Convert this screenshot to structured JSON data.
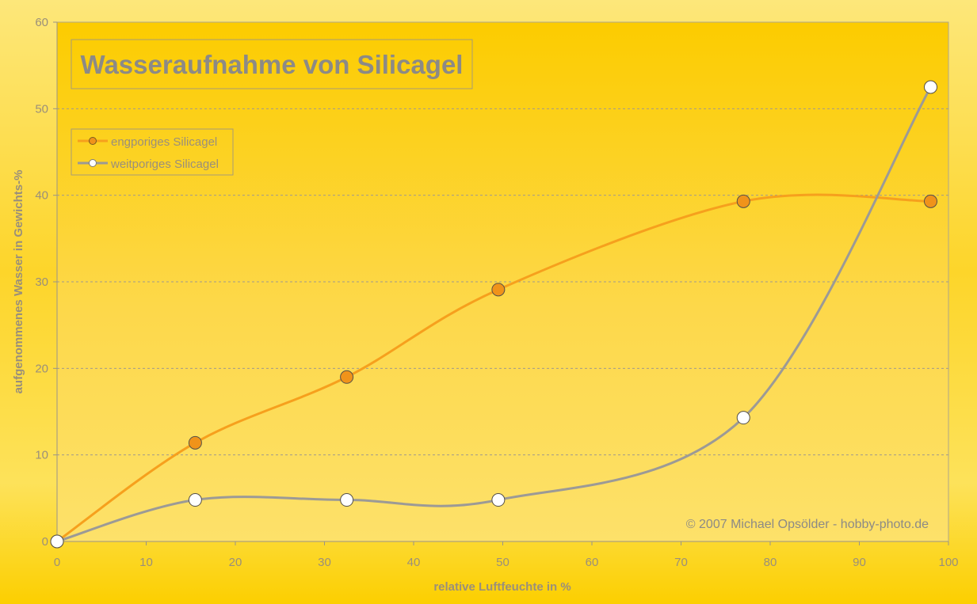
{
  "chart_data": {
    "type": "line",
    "title": "Wasseraufnahme von Silicagel",
    "xlabel": "relative Luftfeuchte in %",
    "ylabel": "aufgenommenes Wasser in Gewichts-%",
    "xlim": [
      0,
      100
    ],
    "ylim": [
      0,
      60
    ],
    "xticks": [
      0,
      10,
      20,
      30,
      40,
      50,
      60,
      70,
      80,
      90,
      100
    ],
    "yticks": [
      0,
      10,
      20,
      30,
      40,
      50,
      60
    ],
    "grid": true,
    "smooth": true,
    "legend_position": "top-left",
    "series": [
      {
        "name": "engporiges Silicagel",
        "color": "#f6a01d",
        "marker_color": "#f0931a",
        "x": [
          0,
          15.5,
          32.5,
          49.5,
          77,
          98
        ],
        "y": [
          0,
          11.4,
          19.0,
          29.1,
          39.3,
          39.3
        ]
      },
      {
        "name": "weitporiges Silicagel",
        "color": "#9c9a96",
        "marker_color": "#ffffff",
        "x": [
          0,
          15.5,
          32.5,
          49.5,
          77,
          98
        ],
        "y": [
          0,
          4.8,
          4.8,
          4.8,
          14.3,
          52.5
        ]
      }
    ],
    "annotations": [
      "© 2007 Michael Opsölder - hobby-photo.de"
    ]
  }
}
